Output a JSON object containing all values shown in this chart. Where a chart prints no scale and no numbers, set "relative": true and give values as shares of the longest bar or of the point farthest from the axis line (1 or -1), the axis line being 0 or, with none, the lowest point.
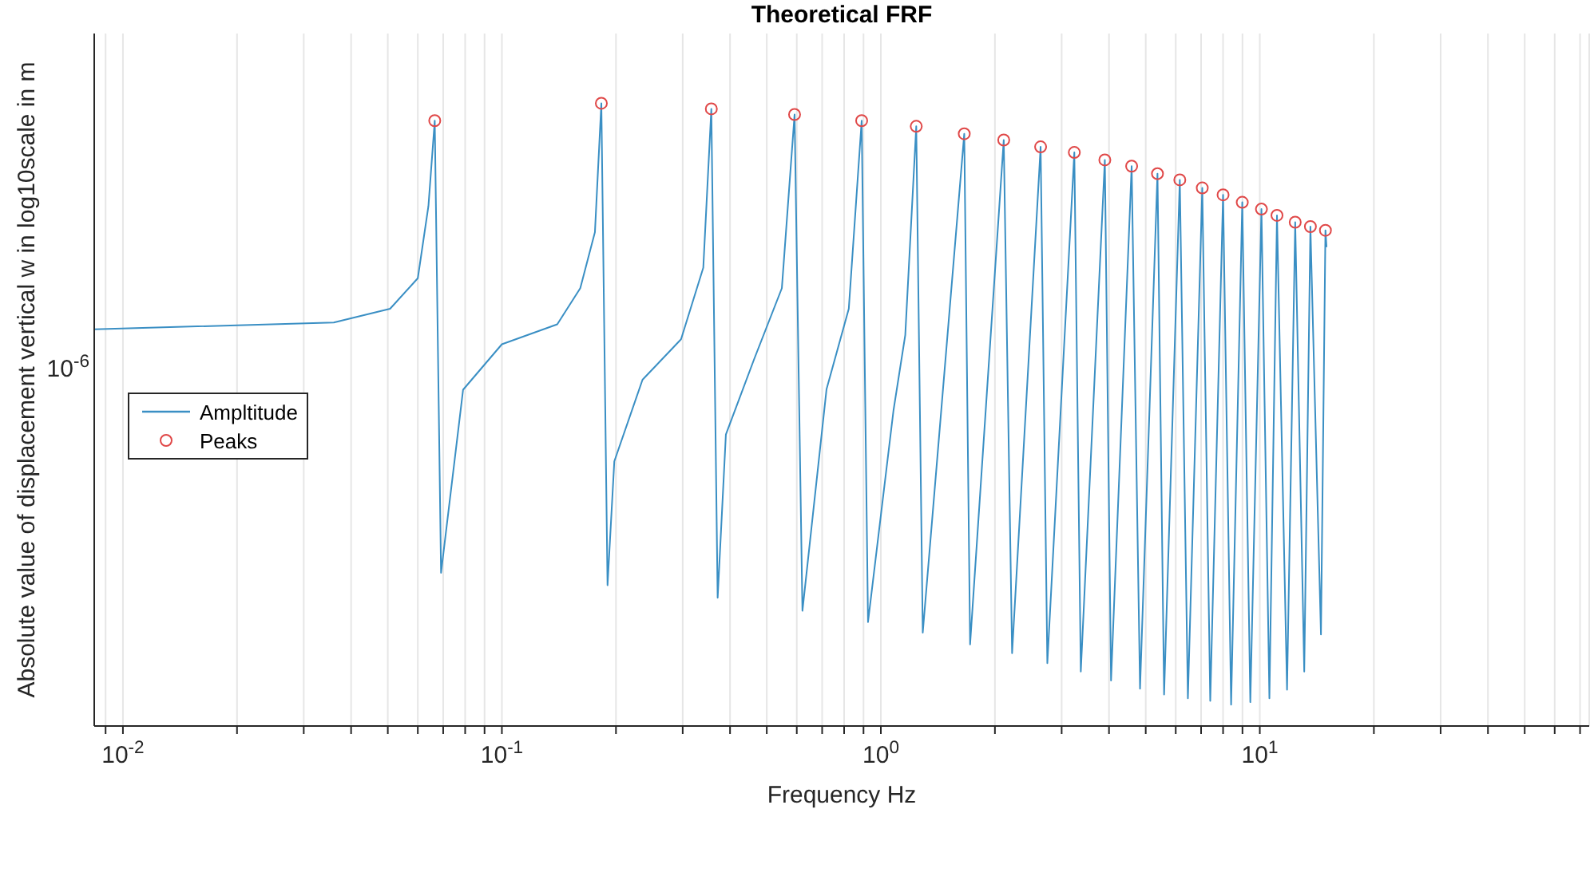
{
  "chart_data": {
    "type": "line",
    "title": "Theoretical FRF",
    "xlabel": "Frequency Hz",
    "ylabel": "Absolute value of displacement vertical w in log10scale in m",
    "log": "x",
    "grid": "x",
    "legend": "left",
    "relative": true,
    "annotations": [
      "10$^{-6}$"
    ],
    "xlim": [
      0.0084,
      74
    ],
    "xticks": [
      {
        "value": 0.009,
        "label": null
      },
      {
        "value": 0.01,
        "label": "10$^{-2}$"
      },
      {
        "value": 0.02,
        "label": null
      },
      {
        "value": 0.03,
        "label": null
      },
      {
        "value": 0.04,
        "label": null
      },
      {
        "value": 0.05,
        "label": null
      },
      {
        "value": 0.06,
        "label": null
      },
      {
        "value": 0.07,
        "label": null
      },
      {
        "value": 0.08,
        "label": null
      },
      {
        "value": 0.09,
        "label": null
      },
      {
        "value": 0.1,
        "label": "10$^{-1}$"
      },
      {
        "value": 0.2,
        "label": null
      },
      {
        "value": 0.3,
        "label": null
      },
      {
        "value": 0.4,
        "label": null
      },
      {
        "value": 0.5,
        "label": null
      },
      {
        "value": 0.6,
        "label": null
      },
      {
        "value": 0.7,
        "label": null
      },
      {
        "value": 0.8,
        "label": null
      },
      {
        "value": 0.9,
        "label": null
      },
      {
        "value": 1,
        "label": "10$^{0}$"
      },
      {
        "value": 2,
        "label": null
      },
      {
        "value": 3,
        "label": null
      },
      {
        "value": 4,
        "label": null
      },
      {
        "value": 5,
        "label": null
      },
      {
        "value": 6,
        "label": null
      },
      {
        "value": 7,
        "label": null
      },
      {
        "value": 8,
        "label": null
      },
      {
        "value": 9,
        "label": null
      },
      {
        "value": 10,
        "label": "10$^{1}$"
      },
      {
        "value": 20,
        "label": null
      },
      {
        "value": 30,
        "label": null
      },
      {
        "value": 40,
        "label": null
      },
      {
        "value": 50,
        "label": null
      },
      {
        "value": 60,
        "label": null
      },
      {
        "value": 70,
        "label": null
      }
    ],
    "series": [
      {
        "name": "Ampltitude",
        "color": "#3a8fc4",
        "marker": "none",
        "x": [
          0.0084,
          0.036,
          0.0507,
          0.06,
          0.064,
          0.0665,
          0.0691,
          0.079,
          0.1,
          0.14,
          0.161,
          0.176,
          0.183,
          0.19,
          0.198,
          0.235,
          0.297,
          0.34,
          0.357,
          0.371,
          0.39,
          0.463,
          0.548,
          0.592,
          0.621,
          0.719,
          0.823,
          0.89,
          0.925,
          1.08,
          1.16,
          1.24,
          1.29,
          1.66,
          1.72,
          2.11,
          2.22,
          2.64,
          2.75,
          3.24,
          3.37,
          3.9,
          4.05,
          4.59,
          4.83,
          5.37,
          5.59,
          6.15,
          6.46,
          7.05,
          7.4,
          8.0,
          8.4,
          8.99,
          9.44,
          10.1,
          10.6,
          11.1,
          11.8,
          12.4,
          13.1,
          13.6,
          14.5,
          14.9,
          15.0
        ],
        "values": [
          0.637,
          0.648,
          0.67,
          0.719,
          0.835,
          0.972,
          0.246,
          0.54,
          0.613,
          0.645,
          0.703,
          0.793,
          1,
          0.226,
          0.425,
          0.556,
          0.621,
          0.736,
          0.991,
          0.206,
          0.468,
          0.589,
          0.703,
          0.982,
          0.185,
          0.541,
          0.67,
          0.972,
          0.167,
          0.507,
          0.628,
          0.963,
          0.15,
          0.951,
          0.131,
          0.941,
          0.117,
          0.93,
          0.101,
          0.921,
          0.0874,
          0.909,
          0.0731,
          0.899,
          0.06,
          0.887,
          0.0505,
          0.877,
          0.0444,
          0.864,
          0.0404,
          0.853,
          0.0343,
          0.841,
          0.0383,
          0.83,
          0.0444,
          0.82,
          0.0582,
          0.809,
          0.0874,
          0.802,
          0.147,
          0.796,
          0.769
        ]
      },
      {
        "name": "Peaks",
        "type": "scatter",
        "color": "#e04848",
        "marker": "circle",
        "x": [
          0.0665,
          0.183,
          0.357,
          0.592,
          0.89,
          1.24,
          1.66,
          2.11,
          2.64,
          3.24,
          3.9,
          4.59,
          5.37,
          6.15,
          7.05,
          8.0,
          8.99,
          10.1,
          11.1,
          12.4,
          13.6,
          14.9
        ],
        "values": [
          0.972,
          1,
          0.991,
          0.982,
          0.972,
          0.963,
          0.951,
          0.941,
          0.93,
          0.921,
          0.909,
          0.899,
          0.887,
          0.877,
          0.864,
          0.853,
          0.841,
          0.83,
          0.82,
          0.809,
          0.802,
          0.796
        ]
      }
    ]
  }
}
